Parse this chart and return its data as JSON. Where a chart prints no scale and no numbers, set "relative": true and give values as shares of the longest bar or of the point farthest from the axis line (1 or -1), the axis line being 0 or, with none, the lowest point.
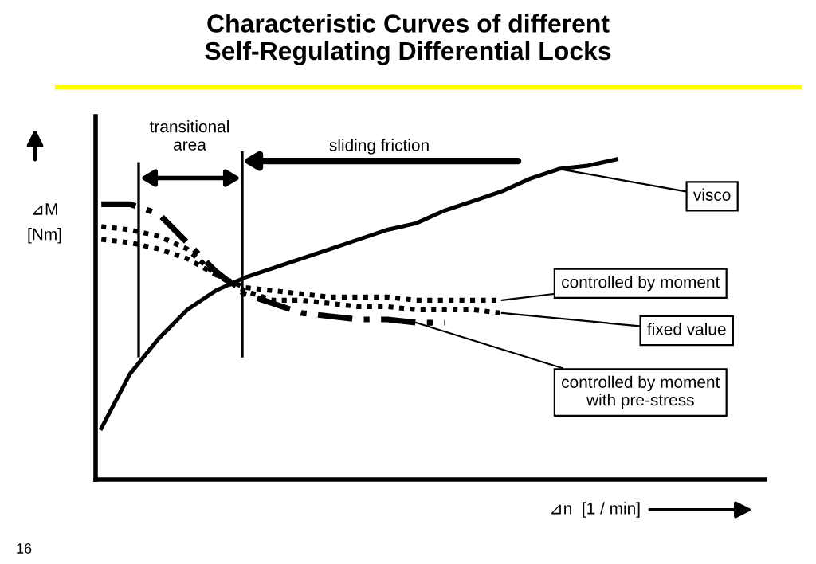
{
  "chart_data": {
    "type": "line",
    "relative": true,
    "title": "Characteristic Curves of different\nSelf-Regulating Differential Locks",
    "ylabel": "⊿M\n[Nm]",
    "xlabel": "⊿n  [1 / min]",
    "categories": [
      null,
      null,
      null,
      null,
      null,
      null,
      null,
      null,
      null,
      null,
      null,
      null,
      null,
      null,
      null,
      null,
      null,
      null,
      null,
      null,
      null,
      null,
      null,
      null
    ],
    "series": [
      {
        "name": "visco",
        "color": "#000000",
        "line_style": "solid",
        "values": [
          0.16,
          0.33,
          0.44,
          0.53,
          0.59,
          0.63,
          0.66,
          0.69,
          0.72,
          0.75,
          0.78,
          0.8,
          0.84,
          0.87,
          0.9,
          0.94,
          0.97,
          0.98,
          1.0,
          null,
          null,
          null,
          null,
          null
        ]
      },
      {
        "name": "controlled by moment",
        "color": "#000000",
        "line_style": "dotted",
        "values": [
          0.79,
          0.78,
          0.76,
          0.72,
          0.64,
          0.6,
          0.59,
          0.58,
          0.57,
          0.57,
          0.57,
          0.56,
          0.56,
          0.56,
          0.56,
          null,
          null,
          null,
          null,
          null,
          null,
          null,
          null,
          null
        ]
      },
      {
        "name": "fixed value",
        "color": "#000000",
        "line_style": "dotted",
        "values": [
          0.75,
          0.74,
          0.72,
          0.69,
          0.64,
          0.59,
          0.56,
          0.56,
          0.55,
          0.54,
          0.54,
          0.53,
          0.53,
          0.53,
          0.52,
          null,
          null,
          null,
          null,
          null,
          null,
          null,
          null,
          null
        ]
      },
      {
        "name": "controlled by moment\nwith pre-stress",
        "color": "#000000",
        "line_style": "dashed",
        "values": [
          0.86,
          0.86,
          0.83,
          0.74,
          0.65,
          0.58,
          0.55,
          0.52,
          0.51,
          0.5,
          0.5,
          0.49,
          0.49,
          null,
          null,
          null,
          null,
          null,
          null,
          null,
          null,
          null,
          null,
          null
        ]
      }
    ],
    "annotations": [
      "transitional\narea",
      "sliding friction",
      "16"
    ]
  }
}
